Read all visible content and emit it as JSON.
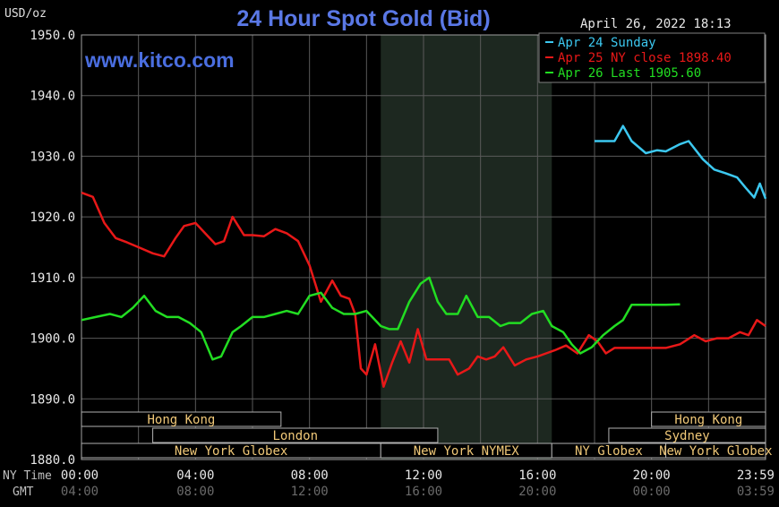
{
  "header": {
    "title": "24 Hour Spot Gold (Bid)",
    "unit": "USD/oz",
    "timestamp": "April 26, 2022 18:13",
    "watermark": "www.kitco.com"
  },
  "legend": {
    "placement": "top-right",
    "items": [
      {
        "label": "Apr 24 Sunday",
        "color": "#3cc8f0"
      },
      {
        "label": "Apr 25 NY close 1898.40",
        "color": "#e81818"
      },
      {
        "label": "Apr 26 Last 1905.60",
        "color": "#22dd22"
      }
    ]
  },
  "axis": {
    "y_ticks": [
      "1950.0",
      "1940.0",
      "1930.0",
      "1920.0",
      "1910.0",
      "1900.0",
      "1890.0",
      "1880.0"
    ],
    "x_ticks_ny": [
      "00:00",
      "04:00",
      "08:00",
      "12:00",
      "16:00",
      "20:00",
      "23:59"
    ],
    "x_ticks_gmt": [
      "04:00",
      "08:00",
      "12:00",
      "16:00",
      "20:00",
      "00:00",
      "03:59"
    ],
    "ny_label": "NY Time",
    "gmt_label": "GMT"
  },
  "sessions": [
    {
      "label": "Hong Kong",
      "row": 0,
      "start": 0,
      "end": 7
    },
    {
      "label": "Hong Kong",
      "row": 0,
      "start": 20,
      "end": 24
    },
    {
      "label": "London",
      "row": 1,
      "start": 2.5,
      "end": 12.5
    },
    {
      "label": "Sydney",
      "row": 1,
      "start": 18.5,
      "end": 24
    },
    {
      "label": "New York Globex",
      "row": 2,
      "start": 0,
      "end": 10.5
    },
    {
      "label": "New York NYMEX",
      "row": 2,
      "start": 10.5,
      "end": 16.5
    },
    {
      "label": "NY Globex",
      "row": 2,
      "start": 16.5,
      "end": 20.5
    },
    {
      "label": "New York Globex",
      "row": 2,
      "start": 20.5,
      "end": 24
    }
  ],
  "chart_data": {
    "type": "line",
    "title": "24 Hour Spot Gold (Bid)",
    "ylabel": "USD/oz",
    "xlabel": "NY Time",
    "ylim": [
      1880,
      1950
    ],
    "xlim": [
      0,
      24
    ],
    "grid": true,
    "shaded_region": [
      10.5,
      16.5
    ],
    "series": [
      {
        "name": "Apr 24 Sunday",
        "color": "#3cc8f0",
        "points": [
          [
            18.0,
            1932.5
          ],
          [
            18.7,
            1932.5
          ],
          [
            19.0,
            1935
          ],
          [
            19.3,
            1932.5
          ],
          [
            19.8,
            1930.5
          ],
          [
            20.2,
            1931
          ],
          [
            20.5,
            1930.8
          ],
          [
            21.0,
            1932
          ],
          [
            21.3,
            1932.5
          ],
          [
            21.8,
            1929.5
          ],
          [
            22.2,
            1927.8
          ],
          [
            22.6,
            1927.2
          ],
          [
            23.0,
            1926.5
          ],
          [
            23.3,
            1924.8
          ],
          [
            23.6,
            1923.2
          ],
          [
            23.8,
            1925.5
          ],
          [
            24.0,
            1923
          ]
        ]
      },
      {
        "name": "Apr 25 NY close 1898.40",
        "color": "#e81818",
        "points": [
          [
            0,
            1924
          ],
          [
            0.4,
            1923.3
          ],
          [
            0.8,
            1919
          ],
          [
            1.2,
            1916.5
          ],
          [
            1.6,
            1915.8
          ],
          [
            2.0,
            1915
          ],
          [
            2.5,
            1914
          ],
          [
            2.9,
            1913.5
          ],
          [
            3.3,
            1916.5
          ],
          [
            3.6,
            1918.5
          ],
          [
            4.0,
            1919
          ],
          [
            4.3,
            1917.5
          ],
          [
            4.7,
            1915.5
          ],
          [
            5.0,
            1916
          ],
          [
            5.3,
            1920
          ],
          [
            5.7,
            1917
          ],
          [
            6.0,
            1917
          ],
          [
            6.4,
            1916.8
          ],
          [
            6.8,
            1918
          ],
          [
            7.2,
            1917.3
          ],
          [
            7.6,
            1916
          ],
          [
            8.0,
            1912
          ],
          [
            8.4,
            1906
          ],
          [
            8.8,
            1909.5
          ],
          [
            9.1,
            1907
          ],
          [
            9.4,
            1906.5
          ],
          [
            9.6,
            1904
          ],
          [
            9.8,
            1895
          ],
          [
            10.0,
            1894
          ],
          [
            10.3,
            1899
          ],
          [
            10.6,
            1892
          ],
          [
            10.9,
            1896
          ],
          [
            11.2,
            1899.5
          ],
          [
            11.5,
            1896
          ],
          [
            11.8,
            1901.5
          ],
          [
            12.1,
            1896.5
          ],
          [
            12.5,
            1896.5
          ],
          [
            12.9,
            1896.5
          ],
          [
            13.2,
            1894
          ],
          [
            13.6,
            1895
          ],
          [
            13.9,
            1897
          ],
          [
            14.2,
            1896.5
          ],
          [
            14.5,
            1897
          ],
          [
            14.8,
            1898.5
          ],
          [
            15.2,
            1895.5
          ],
          [
            15.6,
            1896.5
          ],
          [
            16.0,
            1897
          ],
          [
            16.3,
            1897.5
          ],
          [
            16.6,
            1898
          ],
          [
            17.0,
            1898.8
          ],
          [
            17.4,
            1897.5
          ],
          [
            17.8,
            1900.5
          ],
          [
            18.1,
            1899.5
          ],
          [
            18.4,
            1897.5
          ],
          [
            18.7,
            1898.4
          ],
          [
            19.5,
            1898.4
          ],
          [
            20.5,
            1898.4
          ],
          [
            21.0,
            1899
          ],
          [
            21.5,
            1900.5
          ],
          [
            21.9,
            1899.5
          ],
          [
            22.3,
            1900
          ],
          [
            22.7,
            1900
          ],
          [
            23.1,
            1901
          ],
          [
            23.4,
            1900.5
          ],
          [
            23.7,
            1903
          ],
          [
            24.0,
            1902
          ]
        ]
      },
      {
        "name": "Apr 26 Last 1905.60",
        "color": "#22dd22",
        "points": [
          [
            0,
            1903
          ],
          [
            0.5,
            1903.5
          ],
          [
            1.0,
            1904
          ],
          [
            1.4,
            1903.5
          ],
          [
            1.8,
            1905
          ],
          [
            2.2,
            1907
          ],
          [
            2.6,
            1904.5
          ],
          [
            3.0,
            1903.5
          ],
          [
            3.4,
            1903.5
          ],
          [
            3.8,
            1902.5
          ],
          [
            4.2,
            1901
          ],
          [
            4.6,
            1896.5
          ],
          [
            4.9,
            1897
          ],
          [
            5.3,
            1901
          ],
          [
            5.6,
            1902
          ],
          [
            6.0,
            1903.5
          ],
          [
            6.4,
            1903.5
          ],
          [
            6.8,
            1904
          ],
          [
            7.2,
            1904.5
          ],
          [
            7.6,
            1904
          ],
          [
            8.0,
            1907
          ],
          [
            8.4,
            1907.5
          ],
          [
            8.8,
            1905
          ],
          [
            9.2,
            1904
          ],
          [
            9.6,
            1904
          ],
          [
            10.0,
            1904.5
          ],
          [
            10.5,
            1902
          ],
          [
            10.8,
            1901.5
          ],
          [
            11.1,
            1901.5
          ],
          [
            11.5,
            1906
          ],
          [
            11.9,
            1909
          ],
          [
            12.2,
            1910
          ],
          [
            12.5,
            1906
          ],
          [
            12.8,
            1904
          ],
          [
            13.2,
            1904
          ],
          [
            13.5,
            1907
          ],
          [
            13.9,
            1903.5
          ],
          [
            14.3,
            1903.5
          ],
          [
            14.7,
            1902
          ],
          [
            15.0,
            1902.5
          ],
          [
            15.4,
            1902.5
          ],
          [
            15.8,
            1904
          ],
          [
            16.2,
            1904.5
          ],
          [
            16.5,
            1902
          ],
          [
            16.9,
            1901
          ],
          [
            17.2,
            1899
          ],
          [
            17.5,
            1897.5
          ],
          [
            17.9,
            1898.5
          ],
          [
            18.3,
            1900.5
          ],
          [
            18.7,
            1902
          ],
          [
            19.0,
            1903
          ],
          [
            19.3,
            1905.5
          ],
          [
            19.6,
            1905.5
          ],
          [
            20.0,
            1905.5
          ],
          [
            20.5,
            1905.5
          ],
          [
            21.0,
            1905.6
          ]
        ]
      }
    ]
  }
}
